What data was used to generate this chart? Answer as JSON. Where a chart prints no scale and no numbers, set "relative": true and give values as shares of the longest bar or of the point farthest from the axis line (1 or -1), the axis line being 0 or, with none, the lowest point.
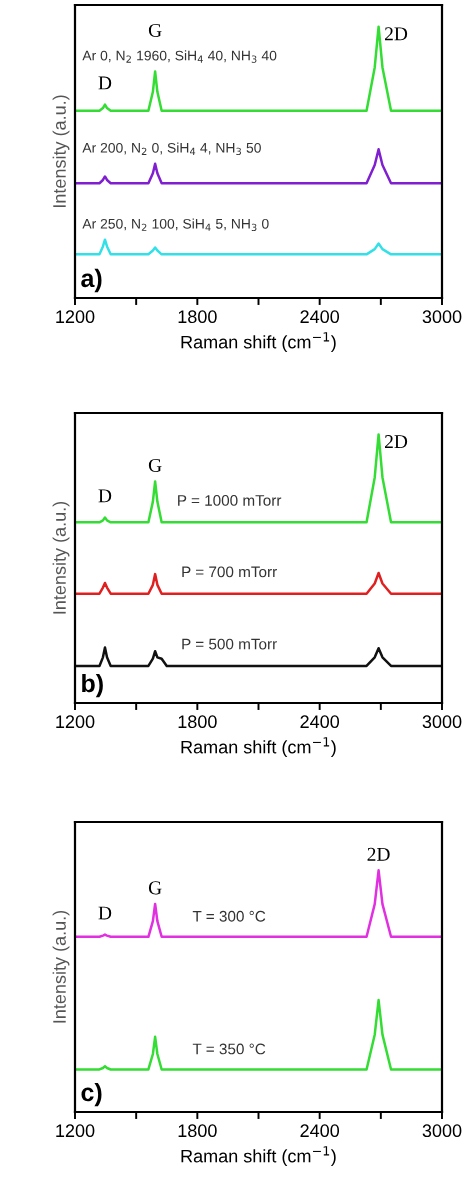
{
  "chart_data": [
    {
      "type": "line",
      "relative": true,
      "xlabel": "Raman shift (cm$^{−1}$)",
      "ylabel": "Intensity (a.u.)",
      "xlim": [
        1200,
        3000
      ],
      "xticks": [
        1200,
        {
          "value": 1500,
          "label": null
        },
        1800,
        {
          "value": 2100,
          "label": null
        },
        2400,
        {
          "value": 2700,
          "label": null
        },
        3000
      ],
      "tick_labels": "x",
      "grid": false,
      "legend": false,
      "x": [
        1200,
        1320,
        1337,
        1347,
        1357,
        1375,
        1560,
        1582,
        1593,
        1604,
        1625,
        2630,
        2670,
        2689,
        2708,
        2750,
        3000
      ],
      "series": [
        {
          "name": "Ar 0, N$_{2}$ 1960, SiH$_{4}$ 40, NH$_{3}$ 40",
          "color": "#33dd33",
          "values": [
            0.69,
            0.69,
            0.7,
            0.713,
            0.7,
            0.69,
            0.69,
            0.76,
            0.835,
            0.76,
            0.69,
            0.69,
            0.85,
            1.0,
            0.85,
            0.69,
            0.69
          ]
        },
        {
          "name": "Ar 200, N$_{2}$ 0, SiH$_{4}$ 4, NH$_{3}$ 50",
          "color": "#7f1fd0",
          "values": [
            0.423,
            0.423,
            0.435,
            0.448,
            0.435,
            0.423,
            0.423,
            0.46,
            0.495,
            0.46,
            0.423,
            0.423,
            0.49,
            0.548,
            0.49,
            0.423,
            0.423
          ]
        },
        {
          "name": "Ar 250, N$_{2}$ 100, SiH$_{4}$ 5, NH$_{3}$ 0",
          "color": "#33e0e8",
          "values": [
            0.161,
            0.161,
            0.19,
            0.215,
            0.19,
            0.161,
            0.161,
            0.175,
            0.186,
            0.175,
            0.161,
            0.161,
            0.18,
            0.201,
            0.18,
            0.161,
            0.161
          ]
        }
      ],
      "annotations": [
        {
          "text": "D",
          "x": 1347,
          "y": 0.713
        },
        {
          "text": "G",
          "x": 1593,
          "y": 0.835
        },
        {
          "text": "2D",
          "x": 2689,
          "y": 1.0
        },
        "a)"
      ]
    },
    {
      "type": "line",
      "relative": true,
      "xlabel": "Raman shift (cm$^{−1}$)",
      "ylabel": "Intensity (a.u.)",
      "xlim": [
        1200,
        3000
      ],
      "xticks": [
        1200,
        {
          "value": 1500,
          "label": null
        },
        1800,
        {
          "value": 2100,
          "label": null
        },
        2400,
        {
          "value": 2700,
          "label": null
        },
        3000
      ],
      "tick_labels": "x",
      "grid": false,
      "legend": false,
      "x": [
        1200,
        1320,
        1337,
        1347,
        1357,
        1375,
        1560,
        1582,
        1593,
        1604,
        1625,
        2630,
        2670,
        2689,
        2708,
        2750,
        3000
      ],
      "series": [
        {
          "name": "P = 1000 mTorr",
          "color": "#33dd33",
          "values": [
            0.673,
            0.673,
            0.68,
            0.691,
            0.68,
            0.673,
            0.673,
            0.75,
            0.825,
            0.75,
            0.673,
            0.673,
            0.84,
            1.0,
            0.84,
            0.673,
            0.673
          ]
        },
        {
          "name": "P = 700 mTorr",
          "color": "#e02020",
          "values": [
            0.407,
            0.407,
            0.43,
            0.447,
            0.43,
            0.407,
            0.407,
            0.44,
            0.48,
            0.44,
            0.407,
            0.407,
            0.445,
            0.484,
            0.445,
            0.407,
            0.407
          ]
        },
        {
          "name": "P = 500 mTorr",
          "color": "#111111",
          "x": [
            1200,
            1320,
            1337,
            1347,
            1357,
            1375,
            1560,
            1582,
            1593,
            1604,
            1625,
            1650,
            2630,
            2670,
            2689,
            2708,
            2750,
            3000
          ],
          "values": [
            0.138,
            0.138,
            0.17,
            0.207,
            0.17,
            0.138,
            0.138,
            0.165,
            0.193,
            0.17,
            0.165,
            0.138,
            0.138,
            0.17,
            0.204,
            0.17,
            0.138,
            0.138
          ]
        }
      ],
      "annotations": [
        {
          "text": "D",
          "x": 1347,
          "y": 0.691
        },
        {
          "text": "G",
          "x": 1593,
          "y": 0.825
        },
        {
          "text": "2D",
          "x": 2689,
          "y": 1.0
        },
        "b)"
      ]
    },
    {
      "type": "line",
      "relative": true,
      "xlabel": "Raman shift (cm$^{−1}$)",
      "ylabel": "Intensity (a.u.)",
      "xlim": [
        1200,
        3000
      ],
      "xticks": [
        1200,
        {
          "value": 1500,
          "label": null
        },
        1800,
        {
          "value": 2100,
          "label": null
        },
        2400,
        {
          "value": 2700,
          "label": null
        },
        3000
      ],
      "tick_labels": "x",
      "grid": false,
      "legend": false,
      "x": [
        1200,
        1320,
        1337,
        1347,
        1357,
        1375,
        1560,
        1582,
        1593,
        1604,
        1625,
        2630,
        2670,
        2689,
        2708,
        2750,
        3000
      ],
      "series": [
        {
          "name": "T = 300 °C",
          "color": "#e030e0",
          "values": [
            0.725,
            0.725,
            0.73,
            0.734,
            0.73,
            0.725,
            0.725,
            0.79,
            0.861,
            0.79,
            0.725,
            0.725,
            0.86,
            1.0,
            0.86,
            0.725,
            0.725
          ]
        },
        {
          "name": "T = 350 °C",
          "color": "#33dd33",
          "values": [
            0.176,
            0.176,
            0.182,
            0.189,
            0.182,
            0.176,
            0.176,
            0.24,
            0.311,
            0.24,
            0.176,
            0.176,
            0.32,
            0.463,
            0.32,
            0.176,
            0.176
          ]
        }
      ],
      "annotations": [
        {
          "text": "D",
          "x": 1347,
          "y": 0.734
        },
        {
          "text": "G",
          "x": 1593,
          "y": 0.861
        },
        {
          "text": "2D",
          "x": 2689,
          "y": 1.0
        },
        "c)"
      ]
    }
  ]
}
